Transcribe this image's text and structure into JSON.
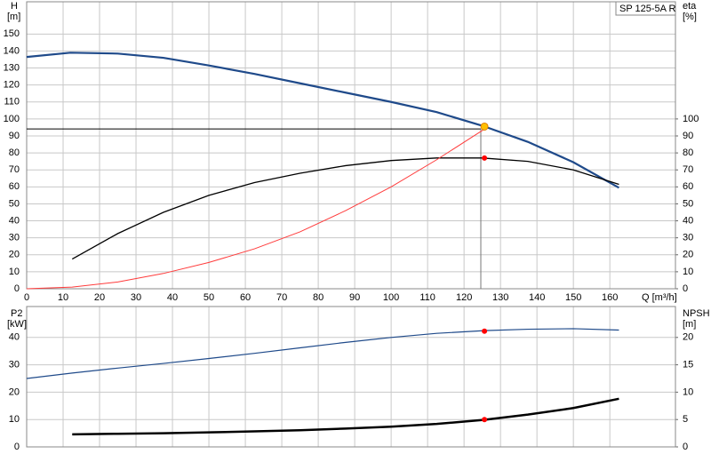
{
  "chart_data": [
    {
      "type": "line",
      "title": "SP 125-5A R",
      "ylabel": "H",
      "ylabel_unit": "[m]",
      "y2label": "eta",
      "y2label_unit": "[%]",
      "xlabel": "Q [m³/h]",
      "xlim": [
        0,
        178
      ],
      "ylim": [
        0,
        169
      ],
      "y2lim": [
        0,
        169
      ],
      "xticks": [
        0,
        10,
        20,
        30,
        40,
        50,
        60,
        70,
        80,
        90,
        100,
        110,
        120,
        130,
        140,
        150,
        160
      ],
      "yticks": [
        0,
        10,
        20,
        30,
        40,
        50,
        60,
        70,
        80,
        90,
        100,
        110,
        120,
        130,
        140,
        150
      ],
      "y2ticks": [
        0,
        10,
        20,
        30,
        40,
        50,
        60,
        70,
        80,
        90,
        100
      ],
      "show_xtick_labels": true,
      "grid": true,
      "series": [
        {
          "color": "#1f4a8a",
          "width": 2.2,
          "axis": "y",
          "x": [
            0,
            12,
            25,
            37.5,
            50,
            62.5,
            75,
            87.5,
            100,
            112.5,
            125,
            137.5,
            150,
            162.5
          ],
          "values": [
            136.5,
            139,
            138.5,
            136,
            131.5,
            126.5,
            121,
            115.5,
            110,
            104,
            96,
            86.5,
            74.5,
            59.5
          ]
        },
        {
          "color": "#000000",
          "width": 1.3,
          "axis": "y2",
          "x": [
            12.5,
            25,
            37.5,
            50,
            62.5,
            75,
            87.5,
            100,
            112.5,
            125,
            137.5,
            150,
            162.5
          ],
          "values": [
            17.5,
            32.5,
            45,
            55,
            62.5,
            68,
            72.5,
            75.5,
            77,
            77,
            75,
            70,
            61.5
          ]
        },
        {
          "color": "#ff3b3b",
          "width": 1,
          "axis": "y",
          "x": [
            0,
            12.5,
            25,
            37.5,
            50,
            62.5,
            75,
            87.5,
            100,
            112.5,
            125.6
          ],
          "values": [
            0,
            1,
            4,
            9,
            15.5,
            23.5,
            33.5,
            46,
            60,
            76,
            94
          ]
        }
      ],
      "markers": [
        {
          "x": 125.6,
          "y": 95.5,
          "axis": "y",
          "color": "#ffc000"
        },
        {
          "x": 125.6,
          "y": 77,
          "axis": "y2",
          "color": "#ff0000"
        }
      ],
      "reference_lines": {
        "x": 124.6,
        "y": 94.1
      }
    },
    {
      "type": "line",
      "ylabel": "P2",
      "ylabel_unit": "[kW]",
      "y2label": "NPSH",
      "y2label_unit": "[m]",
      "xlim": [
        0,
        178
      ],
      "ylim": [
        0,
        51.3
      ],
      "y2lim": [
        0,
        25.65
      ],
      "xticks": [
        0,
        10,
        20,
        30,
        40,
        50,
        60,
        70,
        80,
        90,
        100,
        110,
        120,
        130,
        140,
        150,
        160
      ],
      "yticks": [
        0,
        10,
        20,
        30,
        40
      ],
      "y2ticks": [
        0,
        5,
        10,
        15,
        20
      ],
      "show_xtick_labels": false,
      "grid": true,
      "series": [
        {
          "color": "#1f4a8a",
          "width": 1.2,
          "axis": "y",
          "x": [
            0,
            12.5,
            25,
            37.5,
            50,
            62.5,
            75,
            87.5,
            100,
            112.5,
            125.6,
            137.5,
            150,
            162.5
          ],
          "values": [
            25,
            27,
            28.8,
            30.5,
            32.3,
            34.2,
            36.2,
            38.2,
            40,
            41.5,
            42.5,
            43,
            43.2,
            42.7
          ]
        },
        {
          "color": "#000000",
          "width": 2.5,
          "axis": "y2",
          "x": [
            12.5,
            25,
            37.5,
            50,
            62.5,
            75,
            87.5,
            100,
            112.5,
            125.6,
            137.5,
            150,
            162.5
          ],
          "values": [
            2.3,
            2.4,
            2.5,
            2.65,
            2.85,
            3.05,
            3.35,
            3.7,
            4.2,
            4.95,
            5.9,
            7.1,
            8.8
          ]
        }
      ],
      "markers": [
        {
          "x": 125.6,
          "y": 42.3,
          "axis": "y",
          "color": "#ff0000"
        },
        {
          "x": 125.6,
          "y": 5,
          "axis": "y2",
          "color": "#ff0000"
        }
      ]
    }
  ]
}
